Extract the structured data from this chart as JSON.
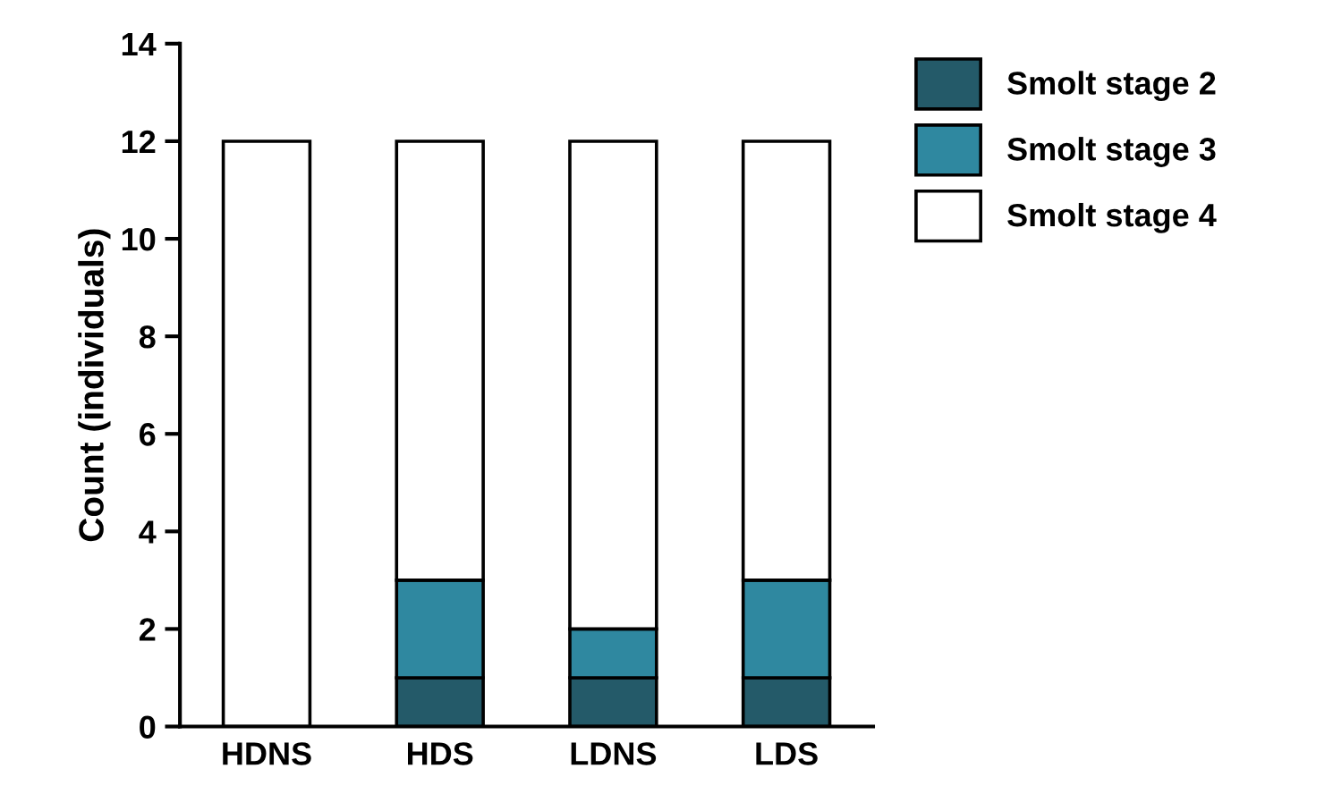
{
  "chart_data": {
    "type": "bar",
    "stacked": true,
    "ylabel": "Count (individuals)",
    "categories": [
      "HDNS",
      "HDS",
      "LDNS",
      "LDS"
    ],
    "series": [
      {
        "name": "Smolt stage 2",
        "color": "#245a69",
        "values": [
          0,
          1,
          1,
          1
        ]
      },
      {
        "name": "Smolt stage 3",
        "color": "#2f88a0",
        "values": [
          0,
          2,
          1,
          2
        ]
      },
      {
        "name": "Smolt stage 4",
        "color": "#ffffff",
        "values": [
          12,
          9,
          10,
          9
        ]
      }
    ],
    "ylim": [
      0,
      14
    ],
    "yticks": [
      0,
      2,
      4,
      6,
      8,
      10,
      12,
      14
    ],
    "grid": false,
    "legend": "top right"
  }
}
